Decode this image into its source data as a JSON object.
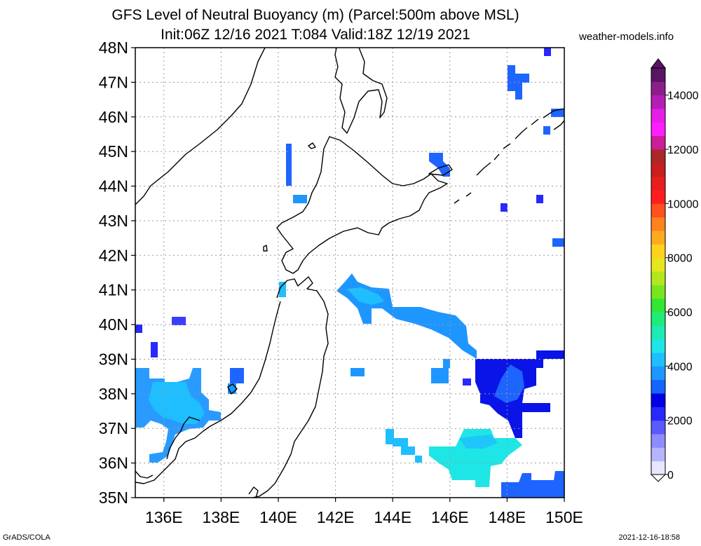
{
  "header": {
    "title_line1": "GFS Level of Neutral Buoyancy (m) (Parcel:500m above MSL)",
    "title_line2": "Init:06Z 12/16 2021 T:084 Valid:18Z 12/19 2021",
    "site": "weather-models.info"
  },
  "footer": {
    "credit": "GrADS/COLA",
    "timestamp": "2021-12-16-18:58"
  },
  "map": {
    "lon_labels": [
      "136E",
      "138E",
      "140E",
      "142E",
      "144E",
      "146E",
      "148E",
      "150E"
    ],
    "lat_labels": [
      "35N",
      "36N",
      "37N",
      "38N",
      "39N",
      "40N",
      "41N",
      "42N",
      "43N",
      "44N",
      "45N",
      "46N",
      "47N",
      "48N"
    ],
    "lon_range": [
      135,
      150
    ],
    "lat_range": [
      35,
      48
    ],
    "gridlines": "dotted",
    "region": "Northern Japan, Sea of Japan, Hokkaido, Sakhalin, Kuril Islands"
  },
  "colorbar": {
    "labels": [
      "0",
      "2000",
      "4000",
      "6000",
      "8000",
      "10000",
      "12000",
      "14000"
    ],
    "range": [
      0,
      15000
    ],
    "colors": [
      "#e6e6ff",
      "#b4b4ff",
      "#8c8cff",
      "#5a5aff",
      "#2828ff",
      "#0000e6",
      "#1464ff",
      "#1e96ff",
      "#1ebeff",
      "#1ee6e6",
      "#1eebb4",
      "#1eeb78",
      "#32e632",
      "#78e61e",
      "#b4e61e",
      "#e6e61e",
      "#ffd21e",
      "#ffaa1e",
      "#ff821e",
      "#ff501e",
      "#ff1e1e",
      "#e61e1e",
      "#c81e1e",
      "#aa2828",
      "#c81e96",
      "#ff1eff",
      "#e61ee6",
      "#b41eb4",
      "#8c1e8c",
      "#5a1464"
    ]
  }
}
